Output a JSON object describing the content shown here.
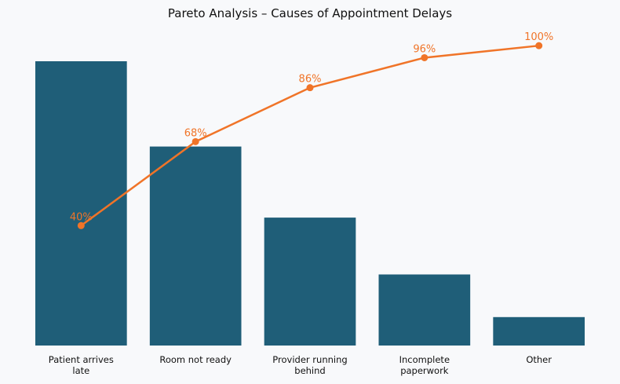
{
  "chart_data": {
    "type": "bar",
    "title": "Pareto Analysis – Causes of Appointment Delays",
    "categories": [
      [
        "Patient arrives",
        "late"
      ],
      [
        "Room not ready"
      ],
      [
        "Provider running",
        "behind"
      ],
      [
        "Incomplete",
        "paperwork"
      ],
      [
        "Other"
      ]
    ],
    "values": [
      40,
      28,
      18,
      10,
      4
    ],
    "ylim": [
      0,
      40
    ],
    "cumulative": {
      "values": [
        40,
        68,
        86,
        96,
        100
      ],
      "labels": [
        "40%",
        "68%",
        "86%",
        "96%",
        "100%"
      ],
      "ylim": [
        0,
        110
      ]
    },
    "grid": false,
    "colors": {
      "bar": "#1f5e78",
      "line": "#f07428"
    }
  }
}
